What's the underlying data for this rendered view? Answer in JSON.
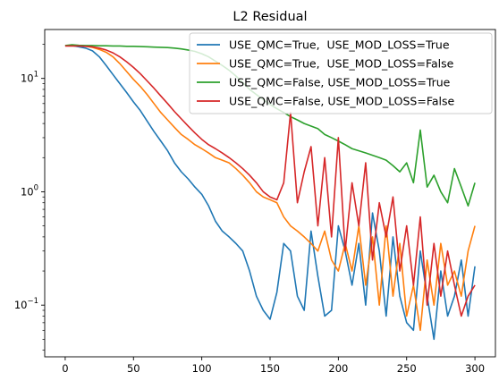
{
  "chart_data": {
    "type": "line",
    "title": "L2 Residual",
    "xlabel": "",
    "ylabel": "",
    "xlim": [
      -15,
      315
    ],
    "ylim": [
      0.035,
      27
    ],
    "yscale": "log",
    "grid": false,
    "legend_position": "top-right",
    "x_ticks": [
      0,
      50,
      100,
      150,
      200,
      250,
      300
    ],
    "x_tick_labels": [
      "0",
      "50",
      "100",
      "150",
      "200",
      "250",
      "300"
    ],
    "y_ticks": [
      0.1,
      1,
      10
    ],
    "y_tick_labels": [
      "10",
      "10",
      "10"
    ],
    "y_tick_exponents": [
      "−1",
      "0",
      "1"
    ],
    "series": [
      {
        "name": "USE_QMC=True,  USE_MOD_LOSS=True",
        "color": "#1f77b4",
        "x": [
          0,
          5,
          10,
          15,
          20,
          25,
          30,
          35,
          40,
          45,
          50,
          55,
          60,
          65,
          70,
          75,
          80,
          85,
          90,
          95,
          100,
          105,
          110,
          115,
          120,
          125,
          130,
          135,
          140,
          145,
          150,
          155,
          160,
          165,
          170,
          175,
          180,
          185,
          190,
          195,
          200,
          205,
          210,
          215,
          220,
          225,
          230,
          235,
          240,
          245,
          250,
          255,
          260,
          265,
          270,
          275,
          280,
          285,
          290,
          295,
          300
        ],
        "values": [
          19.5,
          19.5,
          19,
          18.5,
          17.5,
          15.5,
          13,
          10.8,
          9,
          7.5,
          6.2,
          5.2,
          4.2,
          3.4,
          2.8,
          2.3,
          1.8,
          1.5,
          1.3,
          1.1,
          0.95,
          0.75,
          0.55,
          0.45,
          0.4,
          0.35,
          0.3,
          0.2,
          0.12,
          0.09,
          0.075,
          0.13,
          0.35,
          0.3,
          0.12,
          0.09,
          0.45,
          0.18,
          0.08,
          0.09,
          0.5,
          0.3,
          0.15,
          0.35,
          0.1,
          0.65,
          0.3,
          0.08,
          0.4,
          0.12,
          0.07,
          0.06,
          0.3,
          0.12,
          0.05,
          0.2,
          0.08,
          0.12,
          0.25,
          0.08,
          0.22
        ]
      },
      {
        "name": "USE_QMC=True,  USE_MOD_LOSS=False",
        "color": "#ff7f0e",
        "x": [
          0,
          5,
          10,
          15,
          20,
          25,
          30,
          35,
          40,
          45,
          50,
          55,
          60,
          65,
          70,
          75,
          80,
          85,
          90,
          95,
          100,
          105,
          110,
          115,
          120,
          125,
          130,
          135,
          140,
          145,
          150,
          155,
          160,
          165,
          170,
          175,
          180,
          185,
          190,
          195,
          200,
          205,
          210,
          215,
          220,
          225,
          230,
          235,
          240,
          245,
          250,
          255,
          260,
          265,
          270,
          275,
          280,
          285,
          290,
          295,
          300
        ],
        "values": [
          19.5,
          19.5,
          19.4,
          19.2,
          18.8,
          18,
          17,
          15.5,
          13.5,
          11.5,
          9.8,
          8.5,
          7.2,
          6,
          5,
          4.3,
          3.7,
          3.2,
          2.9,
          2.6,
          2.4,
          2.2,
          2,
          1.9,
          1.8,
          1.6,
          1.4,
          1.2,
          1,
          0.9,
          0.85,
          0.8,
          0.6,
          0.5,
          0.45,
          0.4,
          0.35,
          0.3,
          0.45,
          0.25,
          0.2,
          0.35,
          0.2,
          0.5,
          0.15,
          0.4,
          0.1,
          0.5,
          0.12,
          0.35,
          0.08,
          0.15,
          0.06,
          0.25,
          0.1,
          0.35,
          0.15,
          0.2,
          0.12,
          0.3,
          0.5
        ]
      },
      {
        "name": "USE_QMC=False, USE_MOD_LOSS=True",
        "color": "#2ca02c",
        "x": [
          0,
          5,
          10,
          15,
          20,
          25,
          30,
          35,
          40,
          45,
          50,
          55,
          60,
          65,
          70,
          75,
          80,
          85,
          90,
          95,
          100,
          105,
          110,
          115,
          120,
          125,
          130,
          135,
          140,
          145,
          150,
          155,
          160,
          165,
          170,
          175,
          180,
          185,
          190,
          195,
          200,
          205,
          210,
          215,
          220,
          225,
          230,
          235,
          240,
          245,
          250,
          255,
          260,
          265,
          270,
          275,
          280,
          285,
          290,
          295,
          300
        ],
        "values": [
          19.5,
          19.8,
          19.6,
          19.5,
          19.5,
          19.4,
          19.4,
          19.3,
          19.3,
          19.2,
          19.2,
          19.1,
          19,
          18.9,
          18.8,
          18.7,
          18.5,
          18.2,
          17.8,
          17.3,
          16.5,
          15.5,
          14.2,
          13,
          11.8,
          10.5,
          9.2,
          8,
          7.2,
          6.5,
          5.9,
          5.4,
          5,
          4.6,
          4.3,
          4,
          3.8,
          3.6,
          3.2,
          3,
          2.8,
          2.6,
          2.4,
          2.3,
          2.2,
          2.1,
          2,
          1.9,
          1.7,
          1.5,
          1.8,
          1.2,
          3.5,
          1.1,
          1.4,
          1,
          0.8,
          1.6,
          1.1,
          0.75,
          1.2
        ]
      },
      {
        "name": "USE_QMC=False, USE_MOD_LOSS=False",
        "color": "#d62728",
        "x": [
          0,
          5,
          10,
          15,
          20,
          25,
          30,
          35,
          40,
          45,
          50,
          55,
          60,
          65,
          70,
          75,
          80,
          85,
          90,
          95,
          100,
          105,
          110,
          115,
          120,
          125,
          130,
          135,
          140,
          145,
          150,
          155,
          160,
          165,
          170,
          175,
          180,
          185,
          190,
          195,
          200,
          205,
          210,
          215,
          220,
          225,
          230,
          235,
          240,
          245,
          250,
          255,
          260,
          265,
          270,
          275,
          280,
          285,
          290,
          295,
          300
        ],
        "values": [
          19.3,
          19.3,
          19.3,
          19.2,
          19,
          18.5,
          17.8,
          16.8,
          15.5,
          14,
          12.5,
          11,
          9.5,
          8.2,
          7,
          6,
          5.1,
          4.4,
          3.8,
          3.3,
          2.9,
          2.6,
          2.4,
          2.2,
          2,
          1.8,
          1.6,
          1.4,
          1.2,
          1,
          0.9,
          0.85,
          1.2,
          5,
          0.8,
          1.5,
          2.5,
          0.5,
          2,
          0.4,
          3,
          0.3,
          1.2,
          0.5,
          1.8,
          0.25,
          0.8,
          0.4,
          0.9,
          0.2,
          0.5,
          0.15,
          0.6,
          0.1,
          0.35,
          0.12,
          0.3,
          0.15,
          0.08,
          0.12,
          0.15
        ]
      }
    ]
  }
}
